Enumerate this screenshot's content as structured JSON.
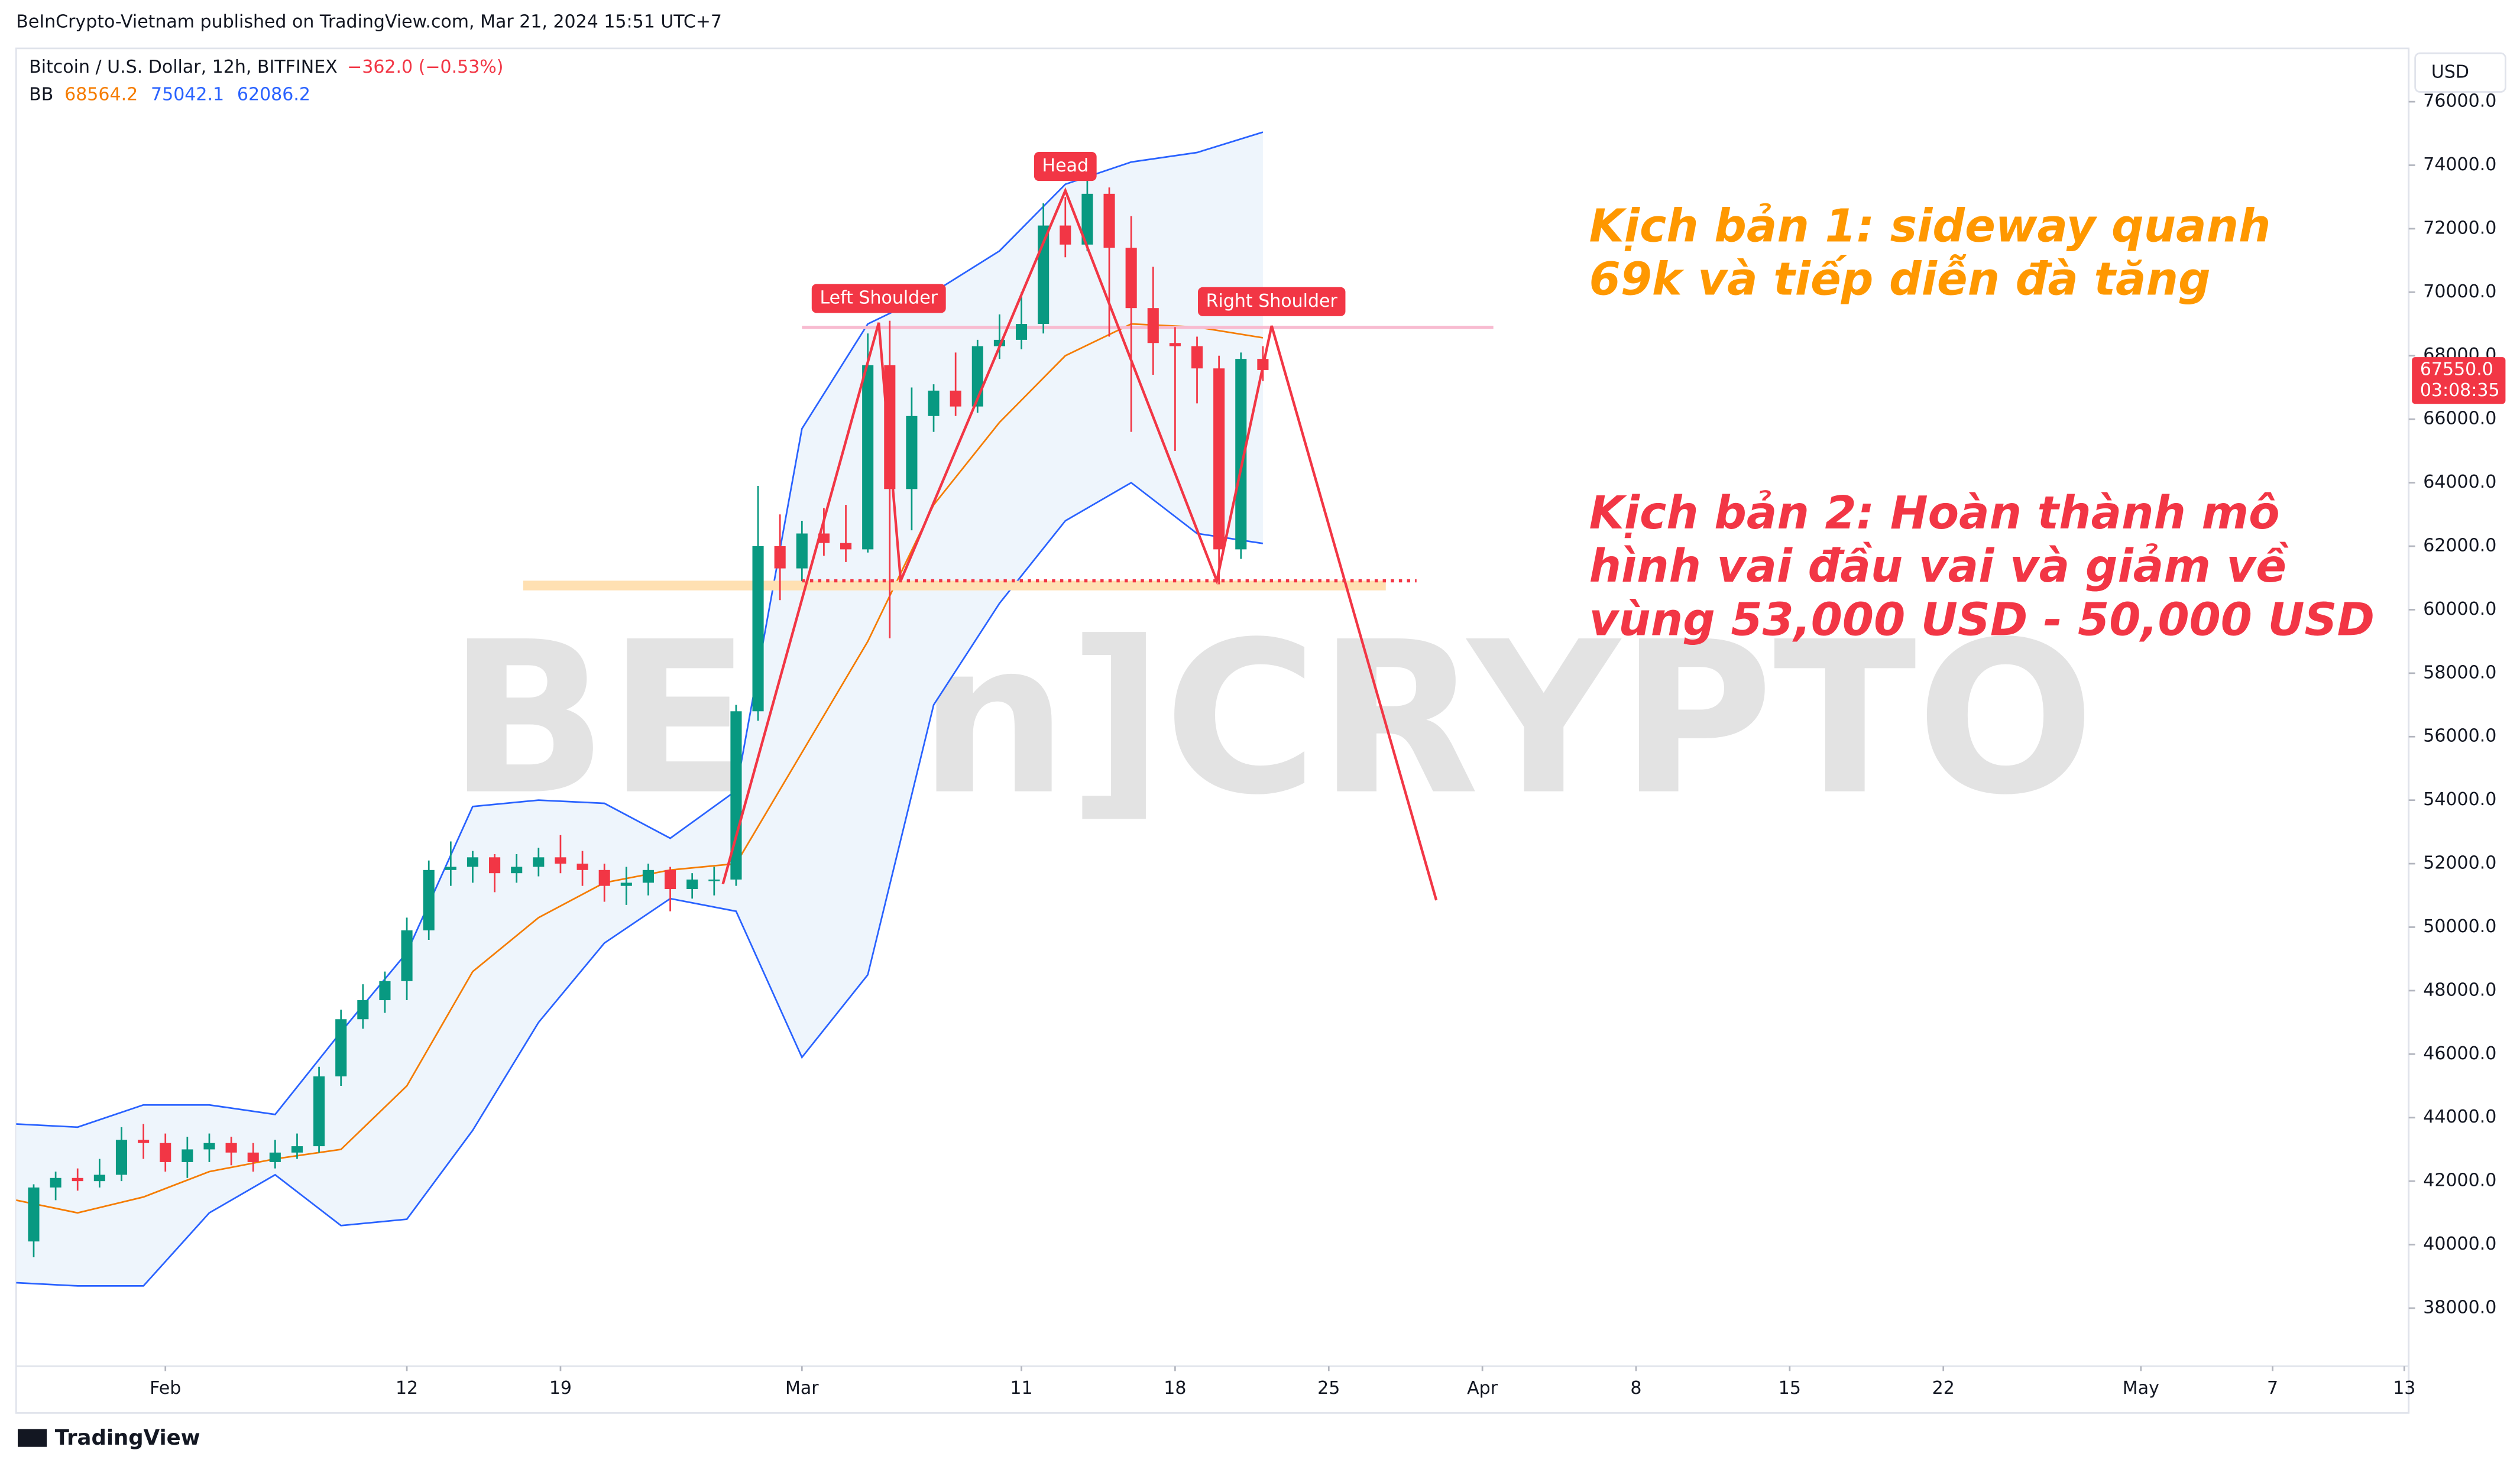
{
  "header": {
    "published": "BeInCrypto-Vietnam published on TradingView.com, Mar 21, 2024 15:51 UTC+7",
    "symbol": "Bitcoin / U.S. Dollar, 12h, BITFINEX",
    "change": "−362.0 (−0.53%)",
    "currency": "USD",
    "footer": "TradingView",
    "watermark": "BE[in]CRYPTO"
  },
  "chart_data": {
    "type": "candlestick",
    "up_color": "#089981",
    "down_color": "#f23645",
    "grid": false,
    "x": [
      25,
      26,
      27,
      28,
      29,
      30,
      31,
      32,
      33,
      34,
      35,
      36,
      37,
      38,
      39,
      40,
      41,
      42,
      43,
      44,
      45,
      46,
      47,
      48,
      49,
      50,
      51,
      52,
      53,
      54,
      55,
      56,
      57,
      58,
      59,
      60,
      61,
      62,
      63,
      64,
      65,
      66,
      67,
      68,
      69,
      70,
      71,
      72,
      73,
      74,
      75,
      76,
      77,
      78,
      79,
      80,
      81
    ],
    "candles": [
      [
        40100,
        41900,
        39600,
        41800
      ],
      [
        41800,
        42300,
        41400,
        42100
      ],
      [
        42100,
        42400,
        41700,
        42000
      ],
      [
        42000,
        42700,
        41800,
        42200
      ],
      [
        42200,
        43700,
        42000,
        43300
      ],
      [
        43300,
        43800,
        42700,
        43200
      ],
      [
        43200,
        43500,
        42300,
        42600
      ],
      [
        42600,
        43400,
        42100,
        43000
      ],
      [
        43000,
        43500,
        42600,
        43200
      ],
      [
        43200,
        43400,
        42500,
        42900
      ],
      [
        42900,
        43200,
        42300,
        42600
      ],
      [
        42600,
        43300,
        42400,
        42900
      ],
      [
        42900,
        43500,
        42700,
        43100
      ],
      [
        43100,
        45600,
        42900,
        45300
      ],
      [
        45300,
        47400,
        45000,
        47100
      ],
      [
        47100,
        48200,
        46800,
        47700
      ],
      [
        47700,
        48600,
        47300,
        48300
      ],
      [
        48300,
        50300,
        47700,
        49900
      ],
      [
        49900,
        52100,
        49600,
        51800
      ],
      [
        51800,
        52700,
        51300,
        51900
      ],
      [
        51900,
        52400,
        51400,
        52200
      ],
      [
        52200,
        52300,
        51100,
        51700
      ],
      [
        51700,
        52300,
        51400,
        51900
      ],
      [
        51900,
        52500,
        51600,
        52200
      ],
      [
        52200,
        52900,
        51700,
        52000
      ],
      [
        52000,
        52400,
        51300,
        51800
      ],
      [
        51800,
        52000,
        50800,
        51300
      ],
      [
        51300,
        51900,
        50700,
        51400
      ],
      [
        51400,
        52000,
        51000,
        51800
      ],
      [
        51800,
        51900,
        50500,
        51200
      ],
      [
        51200,
        51700,
        50900,
        51500
      ],
      [
        51500,
        51900,
        51000,
        51500
      ],
      [
        51500,
        57000,
        51300,
        56800
      ],
      [
        56800,
        63900,
        56500,
        62000
      ],
      [
        62000,
        63000,
        60300,
        61300
      ],
      [
        61300,
        62800,
        60900,
        62400
      ],
      [
        62400,
        63200,
        61700,
        62100
      ],
      [
        62100,
        63300,
        61500,
        61900
      ],
      [
        61900,
        68700,
        61800,
        67700
      ],
      [
        67700,
        69100,
        59100,
        63800
      ],
      [
        63800,
        67000,
        62500,
        66100
      ],
      [
        66100,
        67100,
        65600,
        66900
      ],
      [
        66900,
        68100,
        66100,
        66400
      ],
      [
        66400,
        68500,
        66200,
        68300
      ],
      [
        68300,
        69300,
        67900,
        68500
      ],
      [
        68500,
        70000,
        68200,
        69000
      ],
      [
        69000,
        72800,
        68700,
        72100
      ],
      [
        72100,
        73000,
        71100,
        71500
      ],
      [
        71500,
        73600,
        71300,
        73100
      ],
      [
        73100,
        73300,
        68600,
        71400
      ],
      [
        71400,
        72400,
        65600,
        69500
      ],
      [
        69500,
        70800,
        67400,
        68400
      ],
      [
        68400,
        68900,
        65000,
        68300
      ],
      [
        68300,
        68600,
        66500,
        67600
      ],
      [
        67600,
        68000,
        60800,
        61900
      ],
      [
        61900,
        68100,
        61600,
        67900
      ],
      [
        67900,
        68300,
        67200,
        67550
      ]
    ],
    "xlim": [
      24.2,
      133.2
    ],
    "ylim": [
      36170,
      77680
    ],
    "xticks": [
      {
        "value": 31,
        "label": "Feb"
      },
      {
        "value": 42,
        "label": "12"
      },
      {
        "value": 49,
        "label": "19"
      },
      {
        "value": 60,
        "label": "Mar"
      },
      {
        "value": 70,
        "label": "11"
      },
      {
        "value": 77,
        "label": "18"
      },
      {
        "value": 84,
        "label": "25"
      },
      {
        "value": 91,
        "label": "Apr"
      },
      {
        "value": 98,
        "label": "8"
      },
      {
        "value": 105,
        "label": "15"
      },
      {
        "value": 112,
        "label": "22"
      },
      {
        "value": 121,
        "label": "May"
      },
      {
        "value": 127,
        "label": "7"
      },
      {
        "value": 133,
        "label": "13"
      }
    ],
    "yticks": [
      {
        "value": 38000,
        "label": "38000.0"
      },
      {
        "value": 40000,
        "label": "40000.0"
      },
      {
        "value": 42000,
        "label": "42000.0"
      },
      {
        "value": 44000,
        "label": "44000.0"
      },
      {
        "value": 46000,
        "label": "46000.0"
      },
      {
        "value": 48000,
        "label": "48000.0"
      },
      {
        "value": 50000,
        "label": "50000.0"
      },
      {
        "value": 52000,
        "label": "52000.0"
      },
      {
        "value": 54000,
        "label": "54000.0"
      },
      {
        "value": 56000,
        "label": "56000.0"
      },
      {
        "value": 58000,
        "label": "58000.0"
      },
      {
        "value": 60000,
        "label": "60000.0"
      },
      {
        "value": 62000,
        "label": "62000.0"
      },
      {
        "value": 64000,
        "label": "64000.0"
      },
      {
        "value": 66000,
        "label": "66000.0"
      },
      {
        "value": 68000,
        "label": "68000.0"
      },
      {
        "value": 70000,
        "label": "70000.0"
      },
      {
        "value": 72000,
        "label": "72000.0"
      },
      {
        "value": 74000,
        "label": "74000.0"
      },
      {
        "value": 76000,
        "label": "76000.0"
      }
    ],
    "price_label": {
      "value": 67550,
      "label": "67550.0",
      "countdown": "03:08:35",
      "color": "#f23645"
    },
    "bb": {
      "label": "BB",
      "fill": "#eef5fc",
      "x": [
        24.2,
        27,
        30,
        33,
        36,
        39,
        42,
        45,
        48,
        51,
        54,
        57,
        60,
        63,
        66,
        69,
        72,
        75,
        78,
        81
      ],
      "series": [
        {
          "color": "#f57c00",
          "last": 68564.2,
          "values": [
            41400,
            41000,
            41500,
            42300,
            42700,
            43000,
            45000,
            48600,
            50300,
            51400,
            51800,
            52000,
            55500,
            59000,
            63300,
            65900,
            68000,
            69000,
            68900,
            68564
          ]
        },
        {
          "color": "#2962ff",
          "last": 75042.1,
          "values": [
            43800,
            43700,
            44400,
            44400,
            44100,
            46700,
            49200,
            53800,
            54000,
            53900,
            52800,
            54300,
            65700,
            69000,
            70000,
            71300,
            73400,
            74100,
            74400,
            75042
          ]
        },
        {
          "color": "#2962ff",
          "last": 62086.2,
          "values": [
            38800,
            38700,
            38700,
            41000,
            42200,
            40600,
            40800,
            43600,
            47000,
            49500,
            50900,
            50500,
            45900,
            48500,
            57000,
            60200,
            62800,
            64000,
            62400,
            62086
          ]
        }
      ]
    },
    "annotations": {
      "pattern": {
        "color": "#f23645",
        "x": [
          56.4,
          63.5,
          64.5,
          72.0,
          78.9,
          81.4,
          88.9
        ],
        "y": [
          51360,
          69040,
          60910,
          73200,
          60910,
          68940,
          50850
        ]
      },
      "neckline": {
        "color": "#f23645",
        "value": 60910,
        "x": [
          60,
          88
        ]
      },
      "support": {
        "color": "#ffe0b2",
        "value": 60760,
        "x": [
          47.3,
          86.6
        ]
      },
      "resistance": {
        "color": "#f8bbd0",
        "value": 68890,
        "x": [
          60,
          91.5
        ]
      },
      "labels": [
        {
          "text": "Left Shoulder",
          "x": 63.5,
          "y": 69040
        },
        {
          "text": "Head",
          "x": 72.0,
          "y": 73200
        },
        {
          "text": "Right Shoulder",
          "x": 81.4,
          "y": 68940
        }
      ],
      "scenarios": [
        {
          "color": "#ff9800",
          "lines": [
            "Kịch bản 1: sideway quanh",
            "69k và tiếp diễn đà tăng"
          ]
        },
        {
          "color": "#f23645",
          "lines": [
            "Kịch bản 2: Hoàn thành mô",
            "hình vai đầu vai và giảm về",
            "vùng 53,000 USD - 50,000 USD"
          ]
        }
      ]
    }
  }
}
